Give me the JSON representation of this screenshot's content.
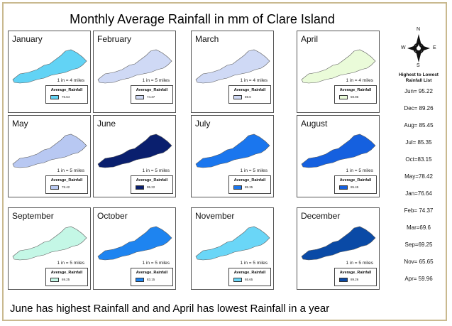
{
  "map": {
    "title": "Monthly Average Rainfall in mm of Clare Island",
    "legend_title": "Average_Rainfall",
    "panels": [
      {
        "month": "January",
        "value_label": "76.64",
        "scale": "1 in = 4 miles",
        "color": "#62d3f5"
      },
      {
        "month": "February",
        "value_label": "74.37",
        "scale": "1 in = 5 miles",
        "color": "#cfd9f5"
      },
      {
        "month": "March",
        "value_label": "69.6",
        "scale": "1 in = 4 miles",
        "color": "#cfd9f5"
      },
      {
        "month": "April",
        "value_label": "59.96",
        "scale": "1 in = 4 miles",
        "color": "#eafbd9"
      },
      {
        "month": "May",
        "value_label": "78.42",
        "scale": "1 in = 5 miles",
        "color": "#b8c8f2"
      },
      {
        "month": "June",
        "value_label": "95.22",
        "scale": "1 in = 5 miles",
        "color": "#0a1f6e"
      },
      {
        "month": "July",
        "value_label": "85.35",
        "scale": "1 in = 5 miles",
        "color": "#1a76ee"
      },
      {
        "month": "August",
        "value_label": "85.45",
        "scale": "1 in = 5 miles",
        "color": "#1560df"
      },
      {
        "month": "September",
        "value_label": "69.25",
        "scale": "1 in = 5 miles",
        "color": "#c4f7e6"
      },
      {
        "month": "October",
        "value_label": "83.15",
        "scale": "1 in = 5 miles",
        "color": "#1e84f0"
      },
      {
        "month": "November",
        "value_label": "65.65",
        "scale": "1 in = 5 miles",
        "color": "#6ad6f7"
      },
      {
        "month": "December",
        "value_label": "89.26",
        "scale": "1 in = 5 miles",
        "color": "#0a4aa6"
      }
    ],
    "compass": {
      "n": "N",
      "s": "S",
      "e": "E",
      "w": "W"
    },
    "ranking_title": "Highest to Lowest Rainfall List",
    "ranking": [
      "Jun= 95.22",
      "Dec= 89.26",
      "Aug= 85.45",
      "Jul= 85.35",
      "Oct=83.15",
      "May=78.42",
      "Jan=76.64",
      "Feb= 74.37",
      "Mar=69.6",
      "Sep=69.25",
      "Nov= 65.65",
      "Apr= 59.96"
    ],
    "summary": "June has highest Rainfall and and April has lowest Rainfall in a year"
  }
}
